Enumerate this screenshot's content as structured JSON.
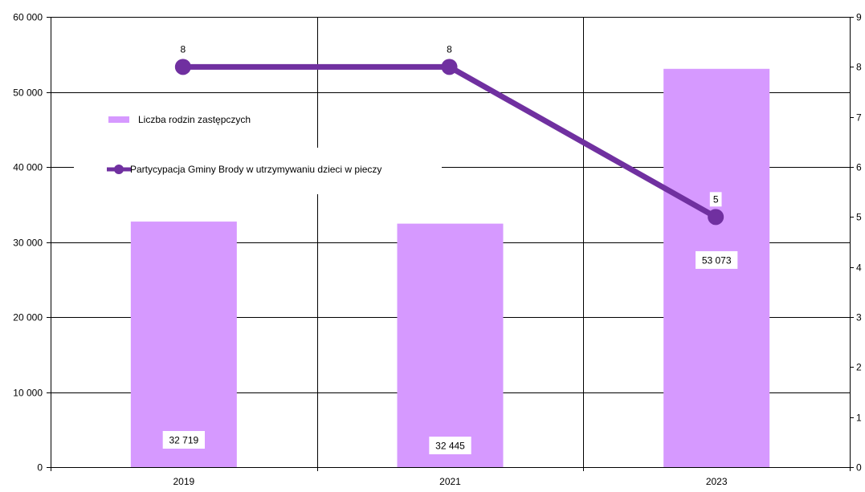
{
  "chart_data": {
    "type": "bar",
    "categories": [
      "2019",
      "2021",
      "2023"
    ],
    "series": [
      {
        "name": "Liczba rodzin zastępczych",
        "kind": "bar",
        "axis": "left",
        "values": [
          32719,
          32445,
          53073
        ],
        "labels": [
          "32 719",
          "32 445",
          "53 073"
        ],
        "color": "#d699ff"
      },
      {
        "name": "Partycypacja Gminy Brody w utrzymywaniu dzieci w pieczy",
        "kind": "line",
        "axis": "right",
        "values": [
          8,
          8,
          5
        ],
        "labels": [
          "8",
          "8",
          "5"
        ],
        "color": "#7030a0"
      }
    ],
    "y_left": {
      "range": [
        0,
        60000
      ],
      "ticks": [
        0,
        10000,
        20000,
        30000,
        40000,
        50000,
        60000
      ],
      "tick_labels": [
        "0",
        "10 000",
        "20 000",
        "30 000",
        "40 000",
        "50 000",
        "60 000"
      ]
    },
    "y_right": {
      "range": [
        0,
        9
      ],
      "ticks": [
        0,
        1,
        2,
        3,
        4,
        5,
        6,
        7,
        8,
        9
      ],
      "tick_labels": [
        "0",
        "1",
        "2",
        "3",
        "4",
        "5",
        "6",
        "7",
        "8",
        "9"
      ]
    },
    "grid": true,
    "legend_position": "top-left"
  }
}
